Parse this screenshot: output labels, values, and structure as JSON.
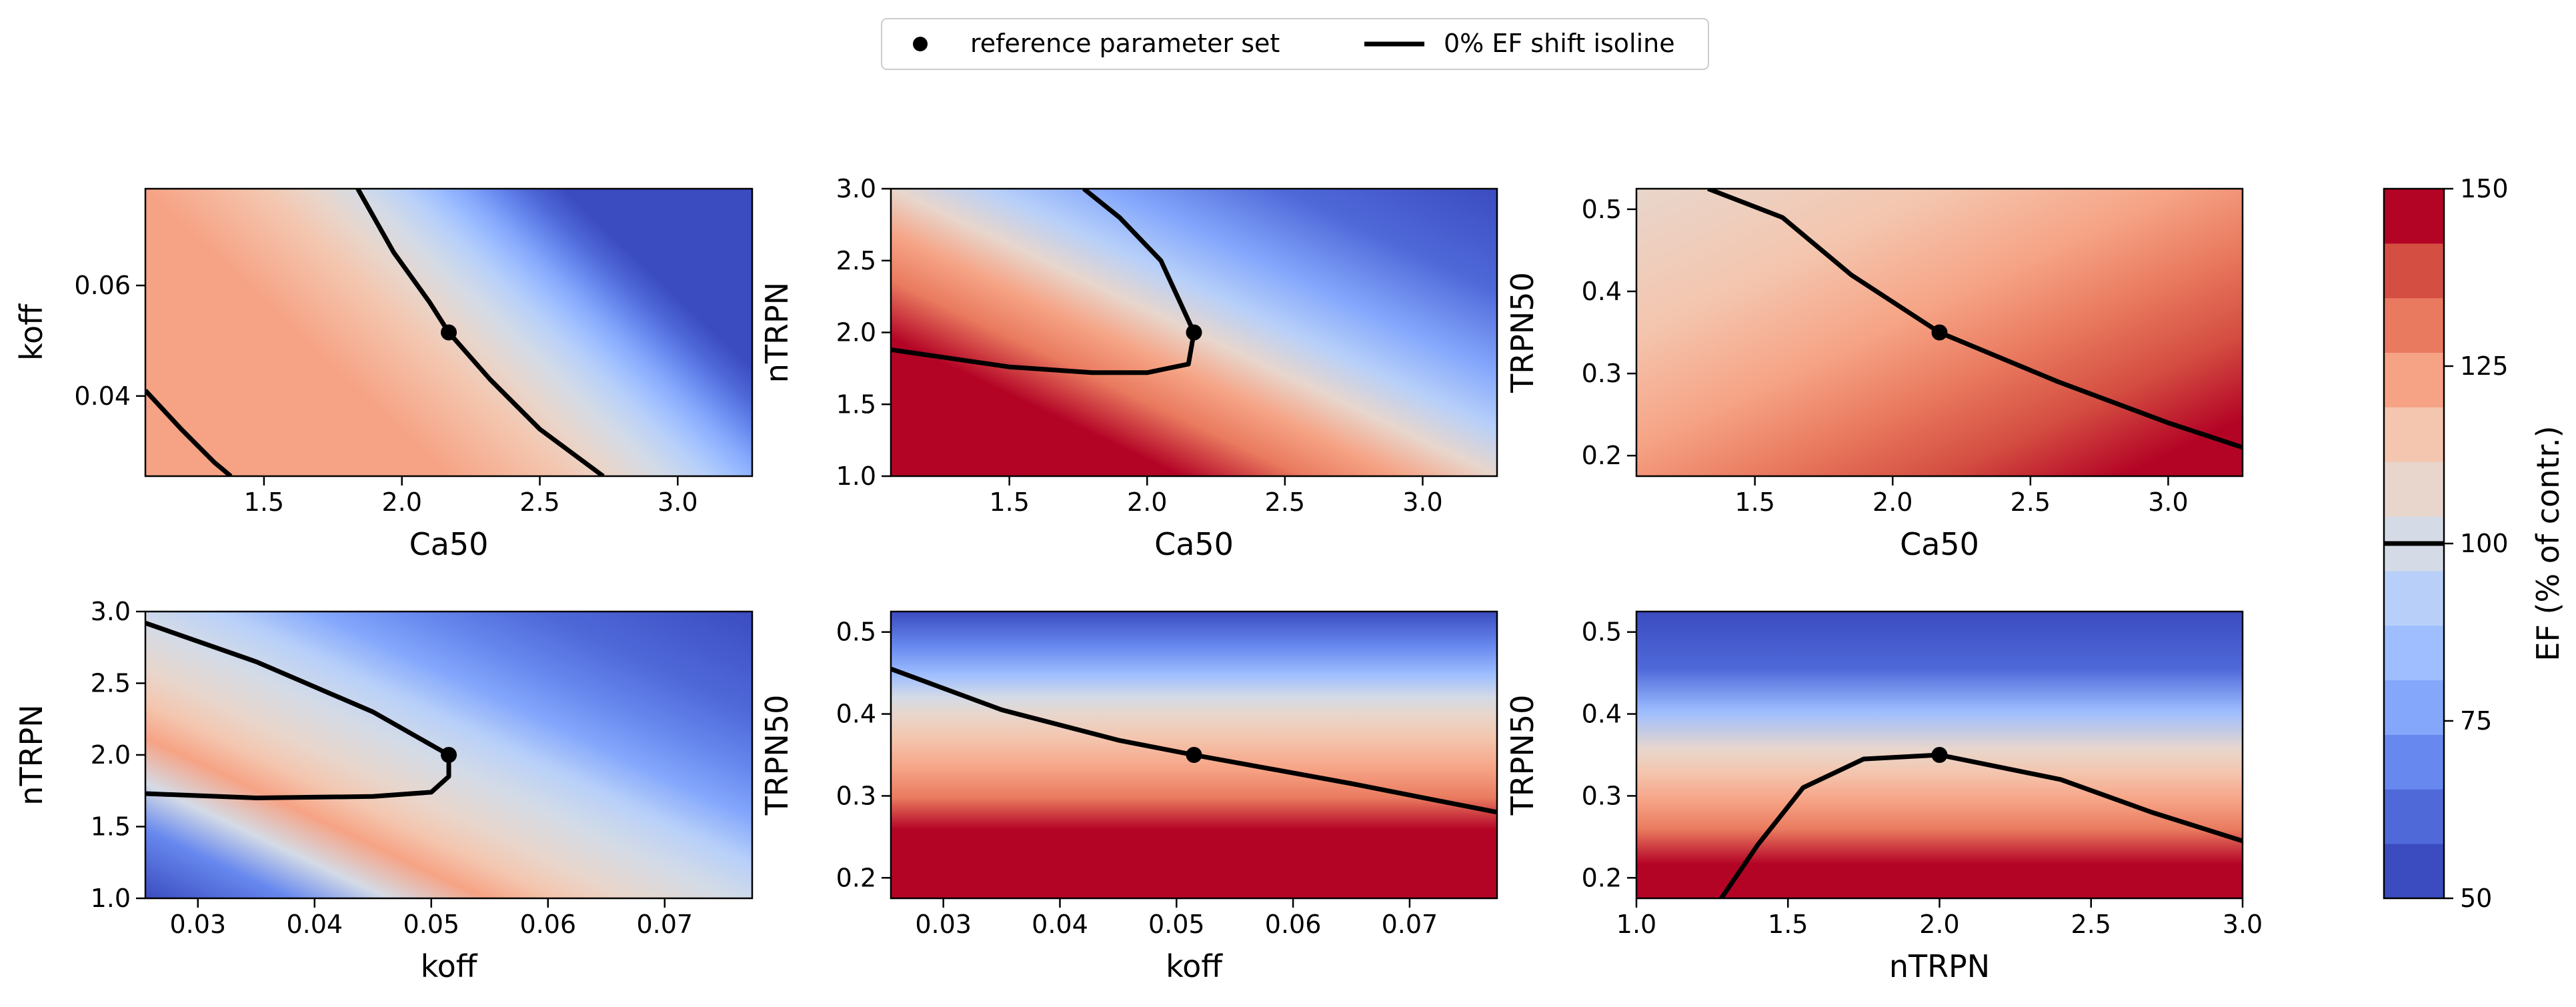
{
  "legend": {
    "marker_label": "reference parameter set",
    "line_label": "0% EF shift isoline"
  },
  "colorbar": {
    "label": "EF (% of contr.)",
    "ticks": [
      "50",
      "75",
      "100",
      "125",
      "150"
    ],
    "levels": [
      50,
      55.6,
      61.1,
      66.7,
      72.2,
      77.8,
      83.3,
      88.9,
      94.4,
      100,
      105.6,
      111.1,
      116.7,
      122.2,
      127.8,
      133.3,
      138.9,
      144.4,
      150
    ],
    "colors": [
      "#3b4cc0",
      "#4f69d9",
      "#6788ee",
      "#84a7fc",
      "#9ebeff",
      "#b8d0f9",
      "#d4dbe6",
      "#e8d6cc",
      "#f4c6af",
      "#f6a385",
      "#e97a5f",
      "#d44e41",
      "#b40426"
    ]
  },
  "chart_data": [
    {
      "type": "contour",
      "xlabel": "Ca50",
      "ylabel": "koff",
      "xlim": [
        1.07,
        3.27
      ],
      "ylim": [
        0.0255,
        0.0775
      ],
      "xticks": [
        "1.5",
        "2.0",
        "2.5",
        "3.0"
      ],
      "xtick_values": [
        1.5,
        2.0,
        2.5,
        3.0
      ],
      "yticks": [
        "0.04",
        "0.06"
      ],
      "ytick_values": [
        0.04,
        0.06
      ],
      "reference": [
        2.17,
        0.0515
      ],
      "isoline": [
        [
          1.07,
          0.041
        ],
        [
          1.2,
          0.034
        ],
        [
          1.32,
          0.028
        ],
        [
          1.38,
          0.0255
        ]
      ],
      "isoline2": [
        [
          1.84,
          0.0775
        ],
        [
          1.97,
          0.066
        ],
        [
          2.1,
          0.057
        ],
        [
          2.17,
          0.0515
        ],
        [
          2.32,
          0.043
        ],
        [
          2.5,
          0.034
        ],
        [
          2.73,
          0.0255
        ]
      ]
    },
    {
      "type": "contour",
      "xlabel": "Ca50",
      "ylabel": "nTRPN",
      "xlim": [
        1.07,
        3.27
      ],
      "ylim": [
        1.0,
        3.0
      ],
      "xticks": [
        "1.5",
        "2.0",
        "2.5",
        "3.0"
      ],
      "xtick_values": [
        1.5,
        2.0,
        2.5,
        3.0
      ],
      "yticks": [
        "1.0",
        "1.5",
        "2.0",
        "2.5",
        "3.0"
      ],
      "ytick_values": [
        1.0,
        1.5,
        2.0,
        2.5,
        3.0
      ],
      "reference": [
        2.17,
        2.0
      ],
      "isoline": [
        [
          1.77,
          3.0
        ],
        [
          1.9,
          2.8
        ],
        [
          2.05,
          2.5
        ],
        [
          2.17,
          2.0
        ],
        [
          2.15,
          1.78
        ],
        [
          2.0,
          1.72
        ],
        [
          1.8,
          1.72
        ],
        [
          1.5,
          1.76
        ],
        [
          1.07,
          1.88
        ]
      ]
    },
    {
      "type": "contour",
      "xlabel": "Ca50",
      "ylabel": "TRPN50",
      "xlim": [
        1.07,
        3.27
      ],
      "ylim": [
        0.175,
        0.525
      ],
      "xticks": [
        "1.5",
        "2.0",
        "2.5",
        "3.0"
      ],
      "xtick_values": [
        1.5,
        2.0,
        2.5,
        3.0
      ],
      "yticks": [
        "0.2",
        "0.3",
        "0.4",
        "0.5"
      ],
      "ytick_values": [
        0.2,
        0.3,
        0.4,
        0.5
      ],
      "reference": [
        2.17,
        0.35
      ],
      "isoline": [
        [
          1.33,
          0.525
        ],
        [
          1.6,
          0.49
        ],
        [
          1.85,
          0.42
        ],
        [
          2.17,
          0.35
        ],
        [
          2.6,
          0.29
        ],
        [
          3.0,
          0.24
        ],
        [
          3.27,
          0.21
        ]
      ]
    },
    {
      "type": "contour",
      "xlabel": "koff",
      "ylabel": "nTRPN",
      "xlim": [
        0.0255,
        0.0775
      ],
      "ylim": [
        1.0,
        3.0
      ],
      "xticks": [
        "0.03",
        "0.04",
        "0.05",
        "0.06",
        "0.07"
      ],
      "xtick_values": [
        0.03,
        0.04,
        0.05,
        0.06,
        0.07
      ],
      "yticks": [
        "1.0",
        "1.5",
        "2.0",
        "2.5",
        "3.0"
      ],
      "ytick_values": [
        1.0,
        1.5,
        2.0,
        2.5,
        3.0
      ],
      "reference": [
        0.0515,
        2.0
      ],
      "isoline": [
        [
          0.0255,
          2.92
        ],
        [
          0.035,
          2.65
        ],
        [
          0.045,
          2.3
        ],
        [
          0.0515,
          2.0
        ],
        [
          0.0515,
          1.85
        ],
        [
          0.05,
          1.74
        ],
        [
          0.045,
          1.71
        ],
        [
          0.035,
          1.7
        ],
        [
          0.0255,
          1.73
        ]
      ]
    },
    {
      "type": "contour",
      "xlabel": "koff",
      "ylabel": "TRPN50",
      "xlim": [
        0.0255,
        0.0775
      ],
      "ylim": [
        0.175,
        0.525
      ],
      "xticks": [
        "0.03",
        "0.04",
        "0.05",
        "0.06",
        "0.07"
      ],
      "xtick_values": [
        0.03,
        0.04,
        0.05,
        0.06,
        0.07
      ],
      "yticks": [
        "0.2",
        "0.3",
        "0.4",
        "0.5"
      ],
      "ytick_values": [
        0.2,
        0.3,
        0.4,
        0.5
      ],
      "reference": [
        0.0515,
        0.35
      ],
      "isoline": [
        [
          0.0255,
          0.455
        ],
        [
          0.035,
          0.405
        ],
        [
          0.045,
          0.368
        ],
        [
          0.0515,
          0.35
        ],
        [
          0.065,
          0.315
        ],
        [
          0.0775,
          0.28
        ]
      ]
    },
    {
      "type": "contour",
      "xlabel": "nTRPN",
      "ylabel": "TRPN50",
      "xlim": [
        1.0,
        3.0
      ],
      "ylim": [
        0.175,
        0.525
      ],
      "xticks": [
        "1.0",
        "1.5",
        "2.0",
        "2.5",
        "3.0"
      ],
      "xtick_values": [
        1.0,
        1.5,
        2.0,
        2.5,
        3.0
      ],
      "yticks": [
        "0.2",
        "0.3",
        "0.4",
        "0.5"
      ],
      "ytick_values": [
        0.2,
        0.3,
        0.4,
        0.5
      ],
      "reference": [
        2.0,
        0.35
      ],
      "isoline": [
        [
          1.28,
          0.175
        ],
        [
          1.4,
          0.24
        ],
        [
          1.55,
          0.31
        ],
        [
          1.75,
          0.345
        ],
        [
          2.0,
          0.35
        ],
        [
          2.4,
          0.32
        ],
        [
          2.7,
          0.28
        ],
        [
          3.0,
          0.245
        ]
      ]
    }
  ]
}
